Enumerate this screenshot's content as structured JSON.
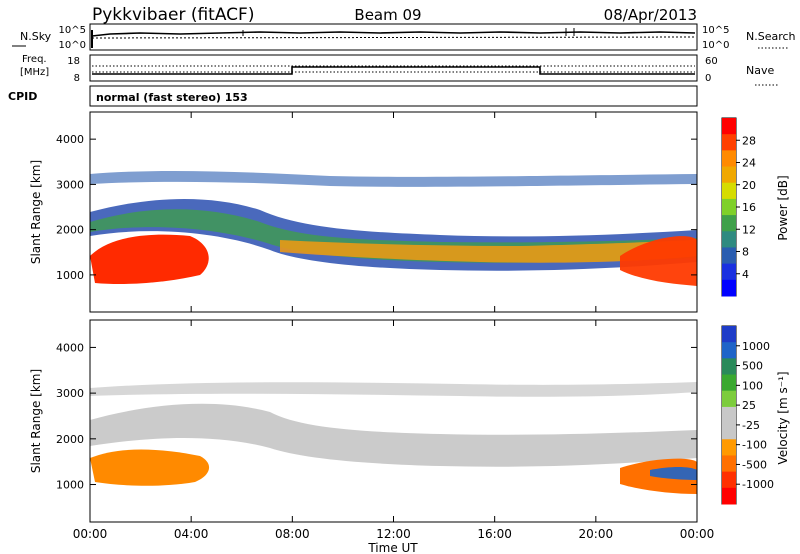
{
  "header": {
    "radar": "Pykkvibaer (fitACF)",
    "beam": "Beam 09",
    "date": "08/Apr/2013"
  },
  "status_panels": {
    "nsky_label": "N.Sky",
    "nsky_ticks": [
      "10^5",
      "10^0"
    ],
    "nsearch_label": "N.Search",
    "nsearch_ticks": [
      "10^5",
      "10^0"
    ],
    "freq_label": "Freq.",
    "freq_unit": "[MHz]",
    "freq_ticks": [
      "18",
      "8"
    ],
    "nave_label": "Nave",
    "nave_ticks": [
      "60",
      "0"
    ],
    "cpid_label": "CPID",
    "cpid_text": "normal (fast stereo) 153"
  },
  "chart_data": [
    {
      "type": "heatmap",
      "name": "power",
      "ylabel": "Slant Range [km]",
      "ylim": [
        180,
        4600
      ],
      "yticks": [
        1000,
        2000,
        3000,
        4000
      ],
      "colorbar": {
        "label": "Power [dB]",
        "ticks": [
          "28",
          "24",
          "20",
          "16",
          "12",
          "8",
          "4"
        ],
        "colors": [
          "#ff0000",
          "#ff4000",
          "#ff8a00",
          "#f0a800",
          "#d6dc00",
          "#7fd02a",
          "#3fa04a",
          "#2f8a80",
          "#2a5db0",
          "#1a30e0",
          "#0000ff"
        ]
      }
    },
    {
      "type": "heatmap",
      "name": "velocity",
      "ylabel": "Slant Range [km]",
      "ylim": [
        180,
        4600
      ],
      "yticks": [
        1000,
        2000,
        3000,
        4000
      ],
      "xlabel": "Time UT",
      "xticks": [
        "00:00",
        "04:00",
        "08:00",
        "12:00",
        "16:00",
        "20:00",
        "00:00"
      ],
      "colorbar": {
        "label": "Velocity [m s⁻¹]",
        "ticks": [
          "1000",
          "500",
          "100",
          "25",
          "-25",
          "-100",
          "-500",
          "-1000"
        ],
        "colors": [
          "#1e3cc8",
          "#1e64c8",
          "#2a8a5a",
          "#3aa830",
          "#7ccc3c",
          "#c8c8c8",
          "#c8c8c8",
          "#ff9a00",
          "#ff7000",
          "#ff3000",
          "#ff0000"
        ]
      }
    }
  ]
}
